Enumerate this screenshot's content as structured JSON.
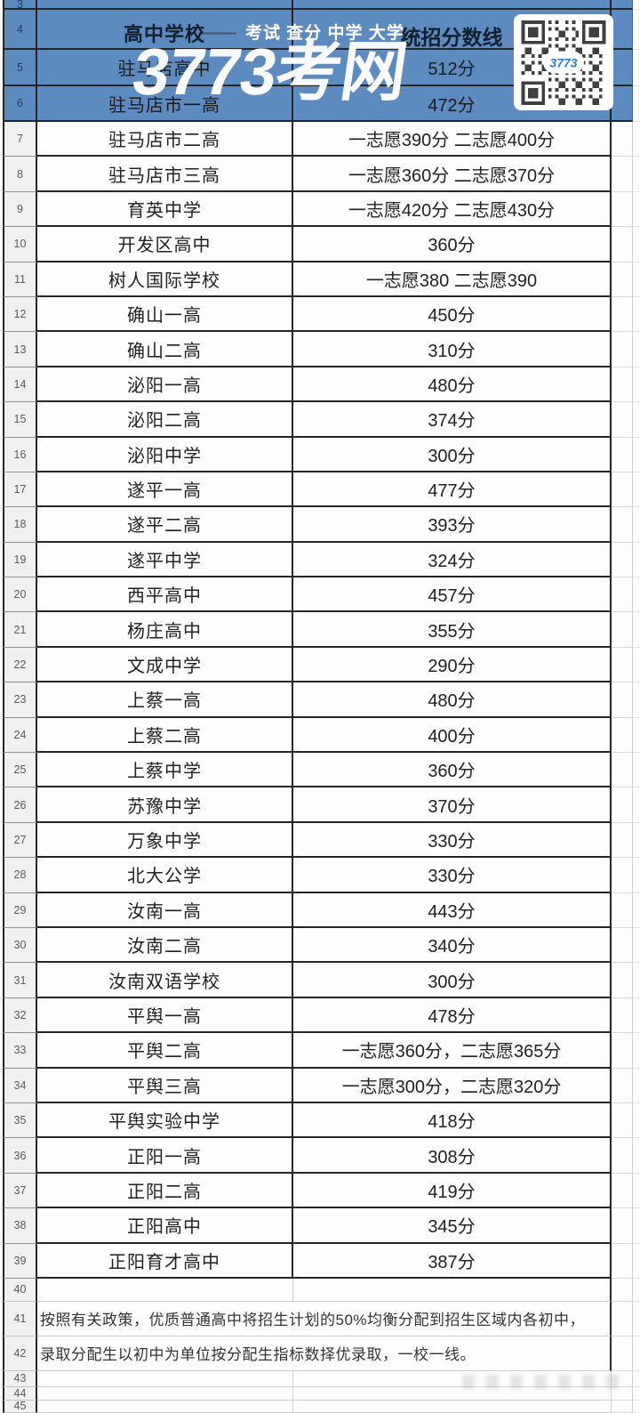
{
  "colors": {
    "band_blue": "#5d8abf",
    "border_dark": "#262626",
    "border_light": "#cfcfcf",
    "gutter_bg": "#f0f0f0",
    "qr_module": "#3f3f3f",
    "brand_blue": "#2e7ed0",
    "watermark_white": "#ffffff"
  },
  "overlay": {
    "dash": "——",
    "menu_links": "考试 查分 中学 大学",
    "big_watermark": "3773考网",
    "qr_center_label": "3773"
  },
  "table": {
    "header": {
      "school_col": "高中学校",
      "score_col": "统招分数线"
    },
    "rows": [
      {
        "num": "3",
        "kind": "blank",
        "band": "blue",
        "name": "",
        "score": ""
      },
      {
        "num": "4",
        "kind": "header",
        "band": "blue",
        "name": "高中学校",
        "score": "统招分数线"
      },
      {
        "num": "5",
        "kind": "data",
        "band": "blue",
        "name": "驻马店高中",
        "score": "512分"
      },
      {
        "num": "6",
        "kind": "data",
        "band": "blue",
        "name": "驻马店市一高",
        "score": "472分"
      },
      {
        "num": "7",
        "kind": "data",
        "band": "white",
        "name": "驻马店市二高",
        "score": "一志愿390分 二志愿400分"
      },
      {
        "num": "8",
        "kind": "data",
        "band": "white",
        "name": "驻马店市三高",
        "score": "一志愿360分 二志愿370分"
      },
      {
        "num": "9",
        "kind": "data",
        "band": "white",
        "name": "育英中学",
        "score": "一志愿420分 二志愿430分"
      },
      {
        "num": "10",
        "kind": "data",
        "band": "white",
        "name": "开发区高中",
        "score": "360分"
      },
      {
        "num": "11",
        "kind": "data",
        "band": "white",
        "name": "树人国际学校",
        "score": "一志愿380 二志愿390"
      },
      {
        "num": "12",
        "kind": "data",
        "band": "white",
        "name": "确山一高",
        "score": "450分"
      },
      {
        "num": "13",
        "kind": "data",
        "band": "white",
        "name": "确山二高",
        "score": "310分"
      },
      {
        "num": "14",
        "kind": "data",
        "band": "white",
        "name": "泌阳一高",
        "score": "480分"
      },
      {
        "num": "15",
        "kind": "data",
        "band": "white",
        "name": "泌阳二高",
        "score": "374分"
      },
      {
        "num": "16",
        "kind": "data",
        "band": "white",
        "name": "泌阳中学",
        "score": "300分"
      },
      {
        "num": "17",
        "kind": "data",
        "band": "white",
        "name": "遂平一高",
        "score": "477分"
      },
      {
        "num": "18",
        "kind": "data",
        "band": "white",
        "name": "遂平二高",
        "score": "393分"
      },
      {
        "num": "19",
        "kind": "data",
        "band": "white",
        "name": "遂平中学",
        "score": "324分"
      },
      {
        "num": "20",
        "kind": "data",
        "band": "white",
        "name": "西平高中",
        "score": "457分"
      },
      {
        "num": "21",
        "kind": "data",
        "band": "white",
        "name": "杨庄高中",
        "score": "355分"
      },
      {
        "num": "22",
        "kind": "data",
        "band": "white",
        "name": "文成中学",
        "score": "290分"
      },
      {
        "num": "23",
        "kind": "data",
        "band": "white",
        "name": "上蔡一高",
        "score": "480分"
      },
      {
        "num": "24",
        "kind": "data",
        "band": "white",
        "name": "上蔡二高",
        "score": "400分"
      },
      {
        "num": "25",
        "kind": "data",
        "band": "white",
        "name": "上蔡中学",
        "score": "360分"
      },
      {
        "num": "26",
        "kind": "data",
        "band": "white",
        "name": "苏豫中学",
        "score": "370分"
      },
      {
        "num": "27",
        "kind": "data",
        "band": "white",
        "name": "万象中学",
        "score": "330分"
      },
      {
        "num": "28",
        "kind": "data",
        "band": "white",
        "name": "北大公学",
        "score": "330分"
      },
      {
        "num": "29",
        "kind": "data",
        "band": "white",
        "name": "汝南一高",
        "score": "443分"
      },
      {
        "num": "30",
        "kind": "data",
        "band": "white",
        "name": "汝南二高",
        "score": "340分"
      },
      {
        "num": "31",
        "kind": "data",
        "band": "white",
        "name": "汝南双语学校",
        "score": "300分"
      },
      {
        "num": "32",
        "kind": "data",
        "band": "white",
        "name": "平舆一高",
        "score": "478分"
      },
      {
        "num": "33",
        "kind": "data",
        "band": "white",
        "name": "平舆二高",
        "score": "一志愿360分，二志愿365分"
      },
      {
        "num": "34",
        "kind": "data",
        "band": "white",
        "name": "平舆三高",
        "score": "一志愿300分，二志愿320分"
      },
      {
        "num": "35",
        "kind": "data",
        "band": "white",
        "name": "平舆实验中学",
        "score": "418分"
      },
      {
        "num": "36",
        "kind": "data",
        "band": "white",
        "name": "正阳一高",
        "score": "308分"
      },
      {
        "num": "37",
        "kind": "data",
        "band": "white",
        "name": "正阳二高",
        "score": "419分"
      },
      {
        "num": "38",
        "kind": "data",
        "band": "white",
        "name": "正阳高中",
        "score": "345分"
      },
      {
        "num": "39",
        "kind": "data",
        "band": "white",
        "name": "正阳育才高中",
        "score": "387分"
      },
      {
        "num": "40",
        "kind": "blank",
        "band": "white",
        "name": "",
        "score": ""
      },
      {
        "num": "41",
        "kind": "note",
        "band": "white",
        "name": "按照有关政策，优质普通高中将招生计划的50%均衡分配到招生区域内各初中，",
        "score": ""
      },
      {
        "num": "42",
        "kind": "note",
        "band": "white",
        "name": "录取分配生以初中为单位按分配生指标数择优录取，一校一线。",
        "score": ""
      },
      {
        "num": "43",
        "kind": "blank",
        "band": "white",
        "name": "",
        "score": ""
      },
      {
        "num": "44",
        "kind": "blank",
        "band": "white",
        "name": "",
        "score": ""
      },
      {
        "num": "45",
        "kind": "blank",
        "band": "white",
        "name": "",
        "score": ""
      }
    ]
  }
}
